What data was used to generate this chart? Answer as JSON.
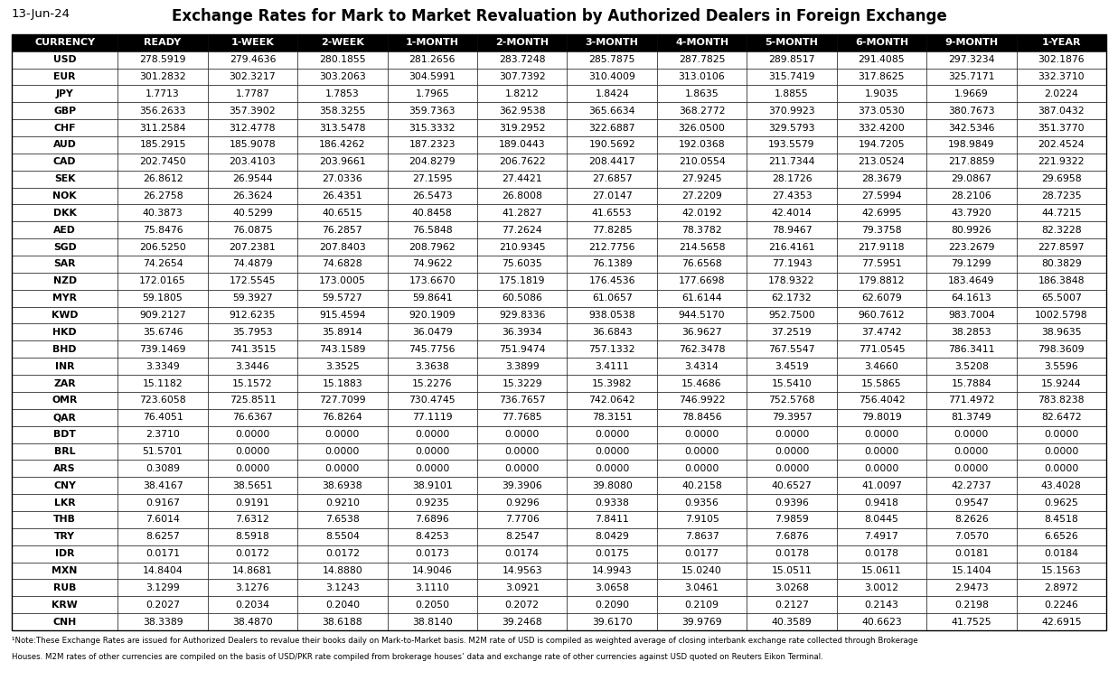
{
  "date_label": "13-Jun-24",
  "title": "Exchange Rates for Mark to Market Revaluation by Authorized Dealers in Foreign Exchange",
  "columns": [
    "CURRENCY",
    "READY",
    "1-WEEK",
    "2-WEEK",
    "1-MONTH",
    "2-MONTH",
    "3-MONTH",
    "4-MONTH",
    "5-MONTH",
    "6-MONTH",
    "9-MONTH",
    "1-YEAR"
  ],
  "rows": [
    [
      "USD",
      "278.5919",
      "279.4636",
      "280.1855",
      "281.2656",
      "283.7248",
      "285.7875",
      "287.7825",
      "289.8517",
      "291.4085",
      "297.3234",
      "302.1876"
    ],
    [
      "EUR",
      "301.2832",
      "302.3217",
      "303.2063",
      "304.5991",
      "307.7392",
      "310.4009",
      "313.0106",
      "315.7419",
      "317.8625",
      "325.7171",
      "332.3710"
    ],
    [
      "JPY",
      "1.7713",
      "1.7787",
      "1.7853",
      "1.7965",
      "1.8212",
      "1.8424",
      "1.8635",
      "1.8855",
      "1.9035",
      "1.9669",
      "2.0224"
    ],
    [
      "GBP",
      "356.2633",
      "357.3902",
      "358.3255",
      "359.7363",
      "362.9538",
      "365.6634",
      "368.2772",
      "370.9923",
      "373.0530",
      "380.7673",
      "387.0432"
    ],
    [
      "CHF",
      "311.2584",
      "312.4778",
      "313.5478",
      "315.3332",
      "319.2952",
      "322.6887",
      "326.0500",
      "329.5793",
      "332.4200",
      "342.5346",
      "351.3770"
    ],
    [
      "AUD",
      "185.2915",
      "185.9078",
      "186.4262",
      "187.2323",
      "189.0443",
      "190.5692",
      "192.0368",
      "193.5579",
      "194.7205",
      "198.9849",
      "202.4524"
    ],
    [
      "CAD",
      "202.7450",
      "203.4103",
      "203.9661",
      "204.8279",
      "206.7622",
      "208.4417",
      "210.0554",
      "211.7344",
      "213.0524",
      "217.8859",
      "221.9322"
    ],
    [
      "SEK",
      "26.8612",
      "26.9544",
      "27.0336",
      "27.1595",
      "27.4421",
      "27.6857",
      "27.9245",
      "28.1726",
      "28.3679",
      "29.0867",
      "29.6958"
    ],
    [
      "NOK",
      "26.2758",
      "26.3624",
      "26.4351",
      "26.5473",
      "26.8008",
      "27.0147",
      "27.2209",
      "27.4353",
      "27.5994",
      "28.2106",
      "28.7235"
    ],
    [
      "DKK",
      "40.3873",
      "40.5299",
      "40.6515",
      "40.8458",
      "41.2827",
      "41.6553",
      "42.0192",
      "42.4014",
      "42.6995",
      "43.7920",
      "44.7215"
    ],
    [
      "AED",
      "75.8476",
      "76.0875",
      "76.2857",
      "76.5848",
      "77.2624",
      "77.8285",
      "78.3782",
      "78.9467",
      "79.3758",
      "80.9926",
      "82.3228"
    ],
    [
      "SGD",
      "206.5250",
      "207.2381",
      "207.8403",
      "208.7962",
      "210.9345",
      "212.7756",
      "214.5658",
      "216.4161",
      "217.9118",
      "223.2679",
      "227.8597"
    ],
    [
      "SAR",
      "74.2654",
      "74.4879",
      "74.6828",
      "74.9622",
      "75.6035",
      "76.1389",
      "76.6568",
      "77.1943",
      "77.5951",
      "79.1299",
      "80.3829"
    ],
    [
      "NZD",
      "172.0165",
      "172.5545",
      "173.0005",
      "173.6670",
      "175.1819",
      "176.4536",
      "177.6698",
      "178.9322",
      "179.8812",
      "183.4649",
      "186.3848"
    ],
    [
      "MYR",
      "59.1805",
      "59.3927",
      "59.5727",
      "59.8641",
      "60.5086",
      "61.0657",
      "61.6144",
      "62.1732",
      "62.6079",
      "64.1613",
      "65.5007"
    ],
    [
      "KWD",
      "909.2127",
      "912.6235",
      "915.4594",
      "920.1909",
      "929.8336",
      "938.0538",
      "944.5170",
      "952.7500",
      "960.7612",
      "983.7004",
      "1002.5798"
    ],
    [
      "HKD",
      "35.6746",
      "35.7953",
      "35.8914",
      "36.0479",
      "36.3934",
      "36.6843",
      "36.9627",
      "37.2519",
      "37.4742",
      "38.2853",
      "38.9635"
    ],
    [
      "BHD",
      "739.1469",
      "741.3515",
      "743.1589",
      "745.7756",
      "751.9474",
      "757.1332",
      "762.3478",
      "767.5547",
      "771.0545",
      "786.3411",
      "798.3609"
    ],
    [
      "INR",
      "3.3349",
      "3.3446",
      "3.3525",
      "3.3638",
      "3.3899",
      "3.4111",
      "3.4314",
      "3.4519",
      "3.4660",
      "3.5208",
      "3.5596"
    ],
    [
      "ZAR",
      "15.1182",
      "15.1572",
      "15.1883",
      "15.2276",
      "15.3229",
      "15.3982",
      "15.4686",
      "15.5410",
      "15.5865",
      "15.7884",
      "15.9244"
    ],
    [
      "OMR",
      "723.6058",
      "725.8511",
      "727.7099",
      "730.4745",
      "736.7657",
      "742.0642",
      "746.9922",
      "752.5768",
      "756.4042",
      "771.4972",
      "783.8238"
    ],
    [
      "QAR",
      "76.4051",
      "76.6367",
      "76.8264",
      "77.1119",
      "77.7685",
      "78.3151",
      "78.8456",
      "79.3957",
      "79.8019",
      "81.3749",
      "82.6472"
    ],
    [
      "BDT",
      "2.3710",
      "0.0000",
      "0.0000",
      "0.0000",
      "0.0000",
      "0.0000",
      "0.0000",
      "0.0000",
      "0.0000",
      "0.0000",
      "0.0000"
    ],
    [
      "BRL",
      "51.5701",
      "0.0000",
      "0.0000",
      "0.0000",
      "0.0000",
      "0.0000",
      "0.0000",
      "0.0000",
      "0.0000",
      "0.0000",
      "0.0000"
    ],
    [
      "ARS",
      "0.3089",
      "0.0000",
      "0.0000",
      "0.0000",
      "0.0000",
      "0.0000",
      "0.0000",
      "0.0000",
      "0.0000",
      "0.0000",
      "0.0000"
    ],
    [
      "CNY",
      "38.4167",
      "38.5651",
      "38.6938",
      "38.9101",
      "39.3906",
      "39.8080",
      "40.2158",
      "40.6527",
      "41.0097",
      "42.2737",
      "43.4028"
    ],
    [
      "LKR",
      "0.9167",
      "0.9191",
      "0.9210",
      "0.9235",
      "0.9296",
      "0.9338",
      "0.9356",
      "0.9396",
      "0.9418",
      "0.9547",
      "0.9625"
    ],
    [
      "THB",
      "7.6014",
      "7.6312",
      "7.6538",
      "7.6896",
      "7.7706",
      "7.8411",
      "7.9105",
      "7.9859",
      "8.0445",
      "8.2626",
      "8.4518"
    ],
    [
      "TRY",
      "8.6257",
      "8.5918",
      "8.5504",
      "8.4253",
      "8.2547",
      "8.0429",
      "7.8637",
      "7.6876",
      "7.4917",
      "7.0570",
      "6.6526"
    ],
    [
      "IDR",
      "0.0171",
      "0.0172",
      "0.0172",
      "0.0173",
      "0.0174",
      "0.0175",
      "0.0177",
      "0.0178",
      "0.0178",
      "0.0181",
      "0.0184"
    ],
    [
      "MXN",
      "14.8404",
      "14.8681",
      "14.8880",
      "14.9046",
      "14.9563",
      "14.9943",
      "15.0240",
      "15.0511",
      "15.0611",
      "15.1404",
      "15.1563"
    ],
    [
      "RUB",
      "3.1299",
      "3.1276",
      "3.1243",
      "3.1110",
      "3.0921",
      "3.0658",
      "3.0461",
      "3.0268",
      "3.0012",
      "2.9473",
      "2.8972"
    ],
    [
      "KRW",
      "0.2027",
      "0.2034",
      "0.2040",
      "0.2050",
      "0.2072",
      "0.2090",
      "0.2109",
      "0.2127",
      "0.2143",
      "0.2198",
      "0.2246"
    ],
    [
      "CNH",
      "38.3389",
      "38.4870",
      "38.6188",
      "38.8140",
      "39.2468",
      "39.6170",
      "39.9769",
      "40.3589",
      "40.6623",
      "41.7525",
      "42.6915"
    ]
  ],
  "footnote_line1": "¹Note:These Exchange Rates are issued for Authorized Dealers to revalue their books daily on Mark-to-Market basis. M2M rate of USD is compiled as weighted average of closing interbank exchange rate collected through Brokerage",
  "footnote_line2": "Houses. M2M rates of other currencies are compiled on the basis of USD/PKR rate compiled from brokerage houses’ data and exchange rate of other currencies against USD quoted on Reuters Eikon Terminal.",
  "header_bg": "#000000",
  "header_fg": "#ffffff",
  "border_color": "#000000",
  "col_widths_rel": [
    1.18,
    1.0,
    1.0,
    1.0,
    1.0,
    1.0,
    1.0,
    1.0,
    1.0,
    1.0,
    1.0,
    1.0
  ],
  "fig_width": 12.37,
  "fig_height": 7.53,
  "dpi": 100
}
